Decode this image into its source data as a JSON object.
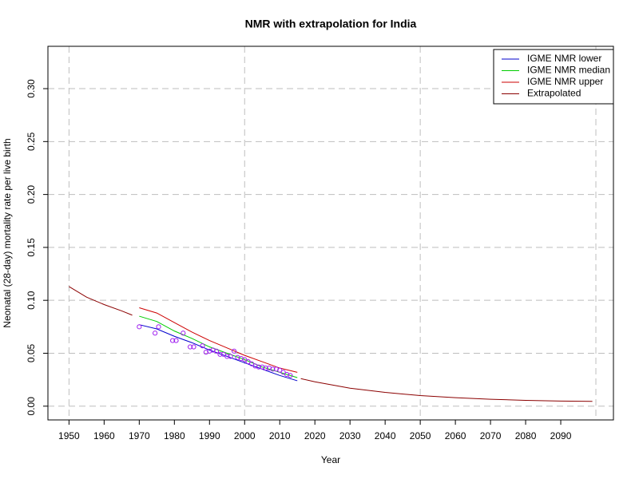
{
  "chart_data": {
    "type": "line",
    "title": "NMR with extrapolation for India",
    "xlabel": "Year",
    "ylabel": "Neonatal (28-day) mortality rate per live birth",
    "xlim": [
      1944,
      2105
    ],
    "ylim": [
      -0.013,
      0.34
    ],
    "xticks": [
      1950,
      1960,
      1970,
      1980,
      1990,
      2000,
      2010,
      2020,
      2030,
      2040,
      2050,
      2060,
      2070,
      2080,
      2090
    ],
    "yticks": [
      {
        "value": 0,
        "label": "0.00"
      },
      {
        "value": 0.05,
        "label": "0.05"
      },
      {
        "value": 0.1,
        "label": "0.10"
      },
      {
        "value": 0.15,
        "label": "0.15"
      },
      {
        "value": 0.2,
        "label": "0.20"
      },
      {
        "value": 0.25,
        "label": "0.25"
      },
      {
        "value": 0.3,
        "label": "0.30"
      }
    ],
    "xgrid": [
      1950,
      2000,
      2050,
      2100
    ],
    "grid": true,
    "legend": "topright",
    "series": [
      {
        "name": "IGME NMR lower",
        "color": "#0000cd",
        "x": [
          1970,
          1975,
          1980,
          1985,
          1990,
          1995,
          2000,
          2005,
          2010,
          2015
        ],
        "values": [
          0.077,
          0.073,
          0.066,
          0.06,
          0.053,
          0.047,
          0.041,
          0.035,
          0.029,
          0.024
        ]
      },
      {
        "name": "IGME NMR median",
        "color": "#00cd00",
        "x": [
          1970,
          1975,
          1980,
          1985,
          1990,
          1995,
          2000,
          2005,
          2010,
          2015
        ],
        "values": [
          0.085,
          0.08,
          0.071,
          0.064,
          0.056,
          0.05,
          0.044,
          0.037,
          0.032,
          0.027
        ]
      },
      {
        "name": "IGME NMR upper",
        "color": "#cd0000",
        "x": [
          1970,
          1975,
          1980,
          1985,
          1990,
          1995,
          2000,
          2005,
          2010,
          2015
        ],
        "values": [
          0.093,
          0.088,
          0.079,
          0.07,
          0.062,
          0.055,
          0.048,
          0.042,
          0.036,
          0.032
        ]
      },
      {
        "name": "Extrapolated",
        "color": "#8b0000",
        "x": [
          1950,
          1955,
          1960,
          1965,
          1968,
          1992,
          2016,
          2020,
          2030,
          2040,
          2050,
          2060,
          2070,
          2080,
          2090,
          2099
        ],
        "values": [
          0.113,
          0.103,
          0.096,
          0.09,
          0.086,
          null,
          0.026,
          0.023,
          0.017,
          0.013,
          0.01,
          0.008,
          0.0065,
          0.0055,
          0.0048,
          0.0045
        ]
      }
    ],
    "points": {
      "color": "#a020f0",
      "x": [
        1970,
        1974.5,
        1975.5,
        1979.5,
        1980.5,
        1982.5,
        1984.5,
        1985.5,
        1988,
        1989,
        1990,
        1991,
        1992,
        1993,
        1994,
        1995,
        1996,
        1997,
        1998,
        1999,
        2000,
        2001,
        2002,
        2003,
        2004,
        2005,
        2006,
        2007,
        2008,
        2009,
        2010,
        2011,
        2012,
        2013
      ],
      "values": [
        0.075,
        0.069,
        0.075,
        0.062,
        0.062,
        0.069,
        0.056,
        0.056,
        0.057,
        0.051,
        0.052,
        0.053,
        0.052,
        0.049,
        0.049,
        0.047,
        0.047,
        0.052,
        0.046,
        0.045,
        0.044,
        0.042,
        0.04,
        0.038,
        0.037,
        0.037,
        0.036,
        0.036,
        0.035,
        0.035,
        0.034,
        0.032,
        0.03,
        0.029
      ]
    }
  }
}
